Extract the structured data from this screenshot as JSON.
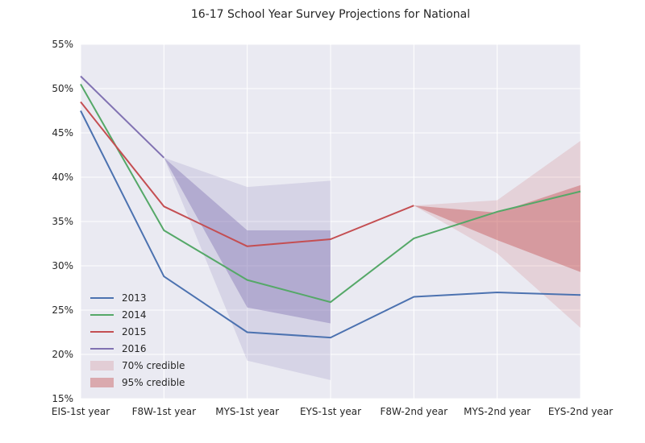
{
  "chart_data": {
    "type": "line",
    "title": "16-17 School Year Survey Projections for National",
    "xlabel": "",
    "ylabel": "",
    "categories": [
      "EIS-1st year",
      "F8W-1st year",
      "MYS-1st year",
      "EYS-1st year",
      "F8W-2nd year",
      "MYS-2nd year",
      "EYS-2nd year"
    ],
    "ylim": [
      15,
      55
    ],
    "yticks": [
      15,
      20,
      25,
      30,
      35,
      40,
      45,
      50,
      55
    ],
    "ytick_labels": [
      "15%",
      "20%",
      "25%",
      "30%",
      "35%",
      "40%",
      "45%",
      "50%",
      "55%"
    ],
    "grid": true,
    "legend_position": "lower-left",
    "series": [
      {
        "name": "2013",
        "color": "#4c72b0",
        "values": [
          47.5,
          28.8,
          22.5,
          21.9,
          26.5,
          27.0,
          26.7
        ]
      },
      {
        "name": "2014",
        "color": "#55a868",
        "values": [
          50.5,
          34.0,
          28.4,
          25.9,
          33.1,
          36.1,
          38.4
        ]
      },
      {
        "name": "2015",
        "color": "#c44e52",
        "values": [
          48.5,
          36.7,
          32.2,
          33.0,
          36.8,
          null,
          null
        ]
      },
      {
        "name": "2016",
        "color": "#8172b2",
        "values": [
          51.4,
          42.2,
          null,
          null,
          null,
          null,
          null
        ]
      }
    ],
    "bands": [
      {
        "name": "70% credible",
        "legend": true,
        "color": "#8172b2",
        "opacity": 0.18,
        "x": [
          1,
          2,
          3
        ],
        "lower": [
          42.2,
          19.3,
          17.1
        ],
        "upper": [
          42.2,
          38.9,
          39.6
        ]
      },
      {
        "name": "95% credible",
        "legend": true,
        "color": "#8172b2",
        "opacity": 0.42,
        "x": [
          1,
          2,
          3
        ],
        "lower": [
          42.2,
          25.3,
          23.5
        ],
        "upper": [
          42.2,
          34.0,
          34.0
        ]
      },
      {
        "name": "70% credible",
        "legend": false,
        "color": "#c44e52",
        "opacity": 0.16,
        "x": [
          4,
          5,
          6
        ],
        "lower": [
          36.8,
          31.4,
          23.0
        ],
        "upper": [
          36.8,
          37.4,
          44.1
        ]
      },
      {
        "name": "95% credible",
        "legend": false,
        "color": "#c44e52",
        "opacity": 0.42,
        "x": [
          4,
          5,
          6
        ],
        "lower": [
          36.8,
          32.9,
          29.3
        ],
        "upper": [
          36.8,
          36.0,
          39.1
        ]
      }
    ],
    "legend": [
      {
        "label": "2013",
        "kind": "line",
        "color": "#4c72b0"
      },
      {
        "label": "2014",
        "kind": "line",
        "color": "#55a868"
      },
      {
        "label": "2015",
        "kind": "line",
        "color": "#c44e52"
      },
      {
        "label": "2016",
        "kind": "line",
        "color": "#8172b2"
      },
      {
        "label": "70% credible",
        "kind": "patch",
        "color": "#c44e52",
        "opacity": 0.18
      },
      {
        "label": "95% credible",
        "kind": "patch",
        "color": "#c44e52",
        "opacity": 0.42
      }
    ],
    "plot_background": "#eaeaf2"
  }
}
